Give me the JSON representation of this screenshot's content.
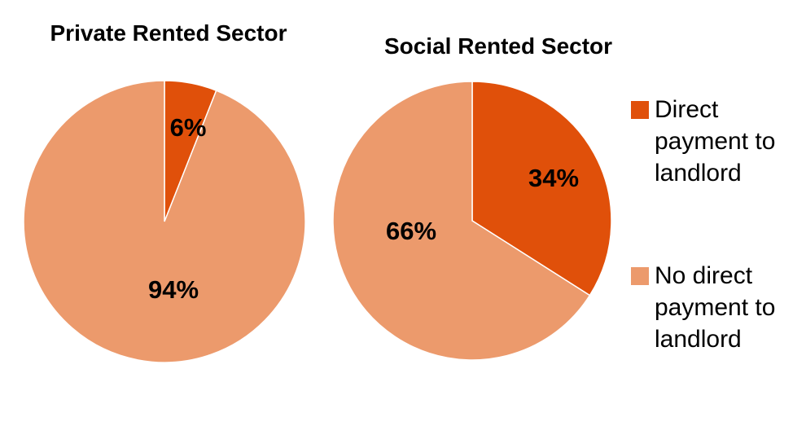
{
  "chart_data": [
    {
      "type": "pie",
      "title": "Private Rented Sector",
      "categories": [
        "Direct payment to landlord",
        "No direct payment to landlord"
      ],
      "values": [
        6,
        94
      ],
      "labels": [
        "6%",
        "94%"
      ]
    },
    {
      "type": "pie",
      "title": "Social Rented Sector",
      "categories": [
        "Direct payment to landlord",
        "No direct payment to landlord"
      ],
      "values": [
        34,
        66
      ],
      "labels": [
        "34%",
        "66%"
      ]
    }
  ],
  "legend": {
    "placement": "right",
    "items": [
      {
        "lines": [
          "Direct",
          "payment to",
          "landlord"
        ],
        "color": "#e0500a"
      },
      {
        "lines": [
          "No direct",
          "payment to",
          "landlord"
        ],
        "color": "#ec9a6c"
      }
    ]
  },
  "colors": {
    "direct": "#e0500a",
    "no_direct": "#ec9a6c",
    "slice_stroke": "#ffffff"
  }
}
